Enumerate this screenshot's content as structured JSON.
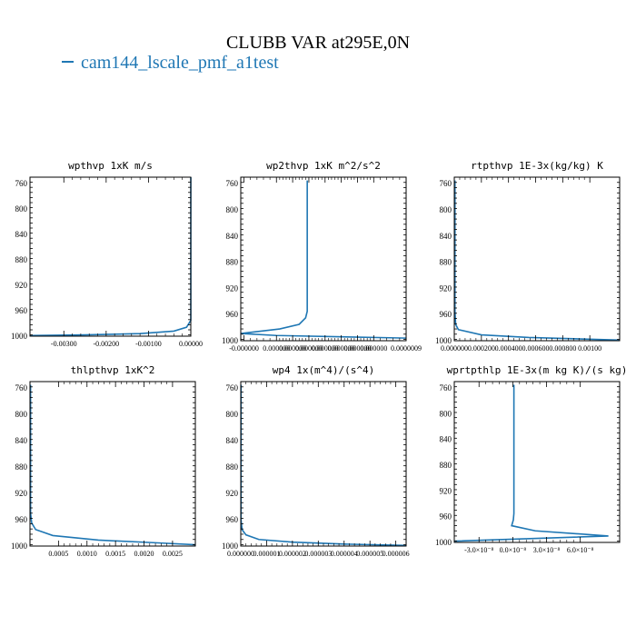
{
  "title": "CLUBB VAR at295E,0N",
  "legend": {
    "label": "cam144_lscale_pmf_a1test",
    "color": "#1f77b4"
  },
  "chart_data": [
    {
      "type": "line",
      "title": "wpthvp   1xK m/s",
      "ylim": [
        1000,
        750
      ],
      "yticks": [
        "760",
        "800",
        "840",
        "880",
        "920",
        "960",
        "1000"
      ],
      "xlim": [
        -0.0038,
        0.0
      ],
      "xticks": [
        {
          "value": -0.003,
          "label": "-0.00300"
        },
        {
          "value": -0.002,
          "label": "-0.00200"
        },
        {
          "value": -0.001,
          "label": "-0.00100"
        },
        {
          "value": 0.0,
          "label": "0.00000"
        }
      ],
      "series": [
        {
          "color": "#1f77b4",
          "x": [
            -0.0038,
            -0.0025,
            -0.0012,
            -0.0004,
            -0.0001,
            0.0,
            0.0
          ],
          "y": [
            999,
            998,
            996,
            992,
            986,
            975,
            750
          ]
        }
      ]
    },
    {
      "type": "line",
      "title": "wp2thvp   1xK m^2/s^2",
      "ylim": [
        1000,
        750
      ],
      "yticks": [
        "760",
        "800",
        "840",
        "880",
        "920",
        "960",
        "1000"
      ],
      "xlim": [
        -1.2e-07,
        9e-07
      ],
      "xticks": [
        {
          "value": -1e-07,
          "label": "-0.000000"
        },
        {
          "value": 1e-07,
          "label": "0.000000"
        },
        {
          "value": 2e-07,
          "label": "0.000000"
        },
        {
          "value": 3e-07,
          "label": "0.000000"
        },
        {
          "value": 4e-07,
          "label": "0.000000"
        },
        {
          "value": 5e-07,
          "label": "0.000000"
        },
        {
          "value": 6e-07,
          "label": "0.000000"
        },
        {
          "value": 7e-07,
          "label": "0.000000"
        },
        {
          "value": 9e-07,
          "label": "0.0000009"
        }
      ],
      "series": [
        {
          "color": "#1f77b4",
          "x": [
            9e-07,
            5e-07,
            1e-07,
            -1.2e-07,
            1.2e-07,
            2.4e-07,
            2.8e-07,
            2.9e-07,
            2.9e-07,
            2.9e-07
          ],
          "y": [
            996,
            994,
            992,
            989,
            982,
            975,
            965,
            955,
            930,
            755
          ]
        }
      ]
    },
    {
      "type": "line",
      "title": "rtpthvp   1E-3x(kg/kg) K",
      "ylim": [
        1000,
        750
      ],
      "yticks": [
        "760",
        "800",
        "840",
        "880",
        "920",
        "960",
        "1000"
      ],
      "xlim": [
        0.0,
        0.00122
      ],
      "xticks": [
        {
          "value": 0.0,
          "label": "0.000000"
        },
        {
          "value": 0.0002,
          "label": "0.000200"
        },
        {
          "value": 0.0004,
          "label": "0.000400"
        },
        {
          "value": 0.0006,
          "label": "0.000600"
        },
        {
          "value": 0.0008,
          "label": "0.000800"
        },
        {
          "value": 0.001,
          "label": "0.00100"
        }
      ],
      "series": [
        {
          "color": "#1f77b4",
          "x": [
            0.00122,
            0.00055,
            0.0002,
            3e-05,
            1e-05,
            5e-06,
            5e-06
          ],
          "y": [
            999,
            995,
            991,
            983,
            975,
            955,
            755
          ]
        }
      ]
    },
    {
      "type": "line",
      "title": "thlpthvp   1xK^2",
      "ylim": [
        1000,
        750
      ],
      "yticks": [
        "760",
        "800",
        "840",
        "880",
        "920",
        "960",
        "1000"
      ],
      "xlim": [
        0.0,
        0.0029
      ],
      "xticks": [
        {
          "value": 0.0005,
          "label": "0.0005"
        },
        {
          "value": 0.001,
          "label": "0.0010"
        },
        {
          "value": 0.0015,
          "label": "0.0015"
        },
        {
          "value": 0.002,
          "label": "0.0020"
        },
        {
          "value": 0.0025,
          "label": "0.0025"
        }
      ],
      "series": [
        {
          "color": "#1f77b4",
          "x": [
            0.0029,
            0.0022,
            0.0012,
            0.0004,
            0.0001,
            3e-05,
            1e-05,
            1e-05
          ],
          "y": [
            998,
            995,
            991,
            984,
            975,
            965,
            950,
            755
          ]
        }
      ]
    },
    {
      "type": "line",
      "title": "wp4   1x(m^4)/(s^4)",
      "ylim": [
        1000,
        750
      ],
      "yticks": [
        "760",
        "800",
        "840",
        "880",
        "920",
        "960",
        "1000"
      ],
      "xlim": [
        0.0,
        6.4e-06
      ],
      "xticks": [
        {
          "value": 0.0,
          "label": "0.000000"
        },
        {
          "value": 1e-06,
          "label": "0.000001"
        },
        {
          "value": 2e-06,
          "label": "0.000002"
        },
        {
          "value": 3e-06,
          "label": "0.000003"
        },
        {
          "value": 4e-06,
          "label": "0.000004"
        },
        {
          "value": 5e-06,
          "label": "0.000005"
        },
        {
          "value": 6e-06,
          "label": "0.000006"
        }
      ],
      "series": [
        {
          "color": "#1f77b4",
          "x": [
            6.4e-06,
            4e-06,
            2e-06,
            7e-07,
            2e-07,
            5e-08,
            1e-08,
            1e-08
          ],
          "y": [
            999,
            997,
            994,
            990,
            983,
            975,
            960,
            755
          ]
        }
      ]
    },
    {
      "type": "line",
      "title": "wprtpthlp   1E-3x(m kg K)/(s kg)",
      "ylim": [
        1000,
        750
      ],
      "yticks": [
        "760",
        "800",
        "840",
        "880",
        "920",
        "960",
        "1000"
      ],
      "xlim": [
        -5.2e-08,
        9.5e-08
      ],
      "xticks": [
        {
          "value": -3e-08,
          "label": "-3.0×10⁻⁸"
        },
        {
          "value": 0.0,
          "label": "0.0×10⁻⁸"
        },
        {
          "value": 3e-08,
          "label": "3.0×10⁻⁸"
        },
        {
          "value": 6e-08,
          "label": "6.0×10⁻⁸"
        }
      ],
      "series": [
        {
          "color": "#1f77b4",
          "x": [
            -5.2e-08,
            8.5e-08,
            2e-08,
            -1e-09,
            5e-10,
            1e-09,
            1e-09,
            1e-09
          ],
          "y": [
            998,
            990,
            982,
            974,
            965,
            955,
            930,
            755
          ]
        }
      ]
    }
  ]
}
